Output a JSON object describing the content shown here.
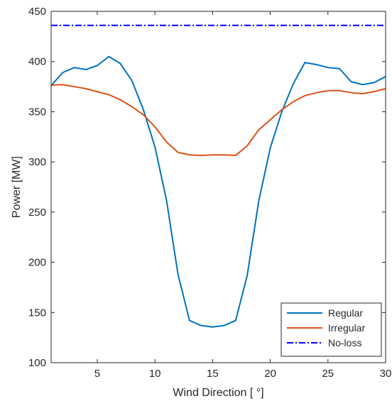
{
  "chart_data": {
    "type": "line",
    "xlabel": "Wind Direction [ °]",
    "ylabel": "Power [MW]",
    "xlim": [
      1,
      30
    ],
    "ylim": [
      100,
      450
    ],
    "xticks": [
      5,
      10,
      15,
      20,
      25,
      30
    ],
    "yticks": [
      100,
      150,
      200,
      250,
      300,
      350,
      400,
      450
    ],
    "grid": false,
    "legend_position": "bottom-right",
    "series": [
      {
        "name": "Regular",
        "color": "#0072BD",
        "style": "solid",
        "x": [
          1,
          2,
          3,
          4,
          5,
          6,
          7,
          8,
          9,
          10,
          11,
          12,
          13,
          14,
          15,
          16,
          17,
          18,
          19,
          20,
          21,
          22,
          23,
          24,
          25,
          26,
          27,
          28,
          29,
          30
        ],
        "values": [
          376,
          389,
          394,
          392,
          396,
          405,
          398,
          381,
          352,
          315,
          262,
          188,
          142,
          137,
          135.5,
          137,
          142,
          187,
          261,
          314,
          350,
          378,
          399,
          397,
          394,
          393,
          380,
          377,
          379,
          385
        ]
      },
      {
        "name": "Irregular",
        "color": "#D95319",
        "style": "solid",
        "x": [
          1,
          2,
          3,
          4,
          5,
          6,
          7,
          8,
          9,
          10,
          11,
          12,
          13,
          14,
          15,
          16,
          17,
          18,
          19,
          20,
          21,
          22,
          23,
          24,
          25,
          26,
          27,
          28,
          29,
          30
        ],
        "values": [
          376.5,
          377,
          375,
          373,
          370,
          367,
          362,
          355,
          347,
          335,
          320,
          309.5,
          307,
          306.5,
          307,
          307,
          306.5,
          316,
          332,
          342,
          352,
          360,
          366,
          369,
          371,
          371,
          369,
          368,
          370,
          373
        ]
      },
      {
        "name": "No-loss",
        "color": "#0000FF",
        "style": "dashdot",
        "x": [
          1,
          30
        ],
        "values": [
          436,
          436
        ]
      }
    ]
  }
}
